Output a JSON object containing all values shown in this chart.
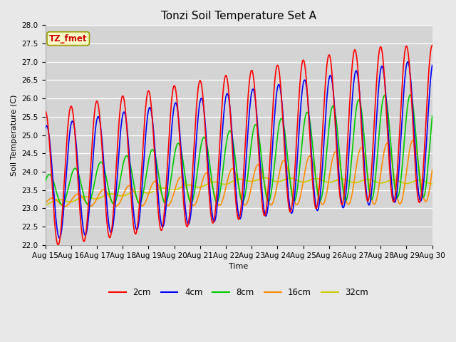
{
  "title": "Tonzi Soil Temperature Set A",
  "xlabel": "Time",
  "ylabel": "Soil Temperature (C)",
  "ylim": [
    22.0,
    28.0
  ],
  "yticks": [
    22.0,
    22.5,
    23.0,
    23.5,
    24.0,
    24.5,
    25.0,
    25.5,
    26.0,
    26.5,
    27.0,
    27.5,
    28.0
  ],
  "xtick_labels": [
    "Aug 15",
    "Aug 16",
    "Aug 17",
    "Aug 18",
    "Aug 19",
    "Aug 20",
    "Aug 21",
    "Aug 22",
    "Aug 23",
    "Aug 24",
    "Aug 25",
    "Aug 26",
    "Aug 27",
    "Aug 28",
    "Aug 29",
    "Aug 30"
  ],
  "legend_labels": [
    "2cm",
    "4cm",
    "8cm",
    "16cm",
    "32cm"
  ],
  "colors": {
    "2cm": "#ff0000",
    "4cm": "#0000ff",
    "8cm": "#00cc00",
    "16cm": "#ff8c00",
    "32cm": "#cccc00"
  },
  "line_width": 1.2,
  "fig_bg_color": "#e8e8e8",
  "plot_bg_color": "#d4d4d4",
  "annotation_text": "TZ_fmet",
  "annotation_color": "#cc0000",
  "annotation_bg": "#ffffcc",
  "annotation_border": "#999900",
  "title_fontsize": 11,
  "label_fontsize": 8,
  "tick_fontsize": 7.5
}
